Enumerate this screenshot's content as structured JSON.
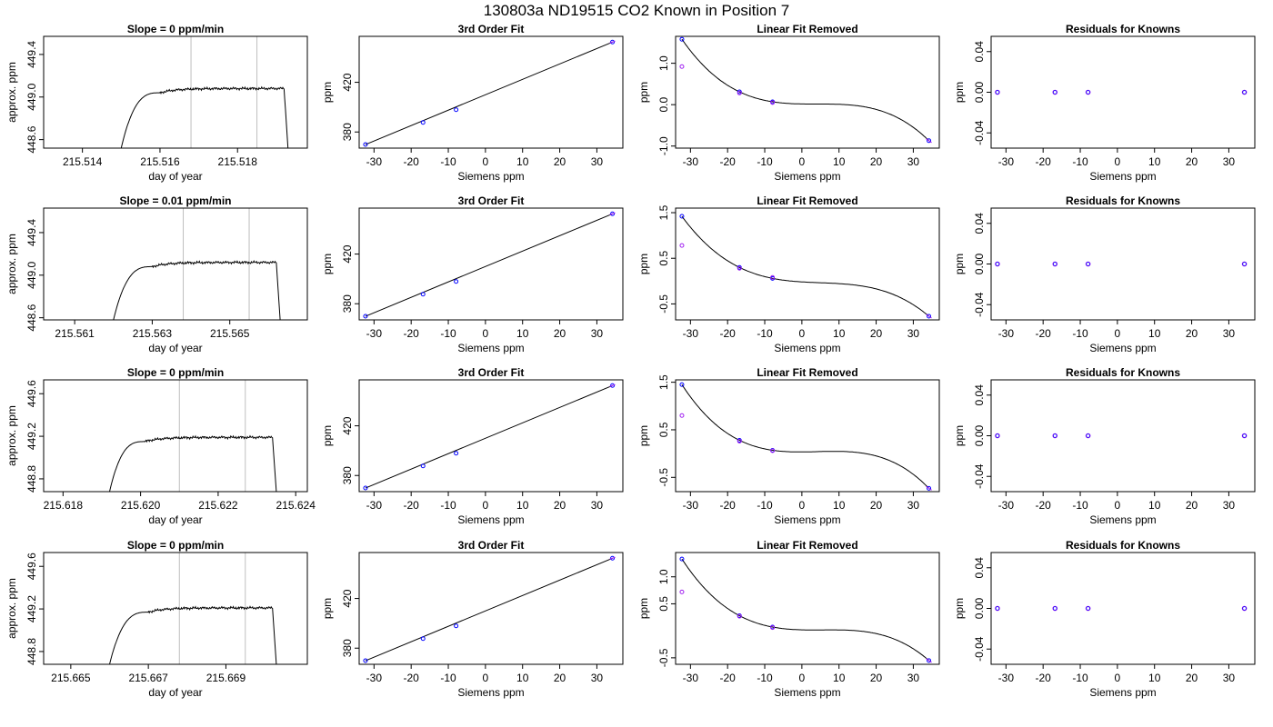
{
  "figure": {
    "title": "130803a     ND19515   CO2 Known in Position  7"
  },
  "colors": {
    "line": "#000000",
    "window": "#bebebe",
    "known_point": "#0000ff",
    "measured_point": "#a020f0",
    "fit_marker": "#ff0000"
  },
  "chart_data": [
    {
      "type": "line",
      "row": 0,
      "col": 0,
      "title": "Slope =  0  ppm/min",
      "xlabel": "day of year",
      "ylabel": "approx. ppm",
      "xlim": [
        215.513,
        215.5198
      ],
      "ylim": [
        448.52,
        449.57
      ],
      "xticks": [
        "215.514",
        "215.516",
        "215.518"
      ],
      "yticks": [
        "448.6",
        "449.0",
        "449.4"
      ],
      "window_lines": [
        215.5168,
        215.5185
      ],
      "trace": {
        "rise_start": [
          215.515,
          448.52
        ],
        "plateau_start": 215.516,
        "plateau_end": 215.5192,
        "plateau_level": 449.08,
        "end": [
          215.5193,
          448.52
        ]
      }
    },
    {
      "type": "scatter",
      "row": 0,
      "col": 1,
      "title": "3rd Order Fit",
      "xlabel": "Siemens ppm",
      "ylabel": "ppm",
      "xlim": [
        -34,
        37
      ],
      "ylim": [
        367,
        457
      ],
      "xticks": [
        "-30",
        "-20",
        "-10",
        "0",
        "10",
        "20",
        "30"
      ],
      "yticks": [
        "380",
        "420"
      ],
      "points": [
        [
          -32.3,
          369.9
        ],
        [
          -16.8,
          387.7
        ],
        [
          -7.9,
          397.9
        ],
        [
          34.2,
          452.4
        ]
      ]
    },
    {
      "type": "scatter",
      "row": 0,
      "col": 2,
      "title": "Linear Fit Removed",
      "xlabel": "Siemens ppm",
      "ylabel": "ppm",
      "xlim": [
        -34,
        37
      ],
      "ylim": [
        -1.05,
        1.65
      ],
      "xticks": [
        "-30",
        "-20",
        "-10",
        "0",
        "10",
        "20",
        "30"
      ],
      "yticks": [
        "-1.0",
        "0.0",
        "1.0"
      ],
      "known_points": [
        [
          -32.3,
          1.58
        ],
        [
          -16.8,
          0.31
        ],
        [
          -7.9,
          0.07
        ],
        [
          34.2,
          -0.87
        ]
      ],
      "measured_points": [
        [
          -32.3,
          0.92
        ],
        [
          -16.8,
          0.28
        ],
        [
          -7.9,
          0.05
        ]
      ],
      "cubic_through": [
        [
          -32.3,
          1.58
        ],
        [
          -16.8,
          0.31
        ],
        [
          -7.9,
          0.07
        ],
        [
          34.2,
          -0.87
        ]
      ]
    },
    {
      "type": "scatter",
      "row": 0,
      "col": 3,
      "title": "Residuals for Knowns",
      "xlabel": "Siemens ppm",
      "ylabel": "ppm",
      "xlim": [
        -34,
        37
      ],
      "ylim": [
        -0.055,
        0.055
      ],
      "xticks": [
        "-30",
        "-20",
        "-10",
        "0",
        "10",
        "20",
        "30"
      ],
      "yticks": [
        "-0.04",
        "0.00",
        "0.04"
      ],
      "points": [
        [
          -32.3,
          0
        ],
        [
          -16.8,
          0
        ],
        [
          -7.9,
          0
        ],
        [
          34.2,
          0
        ]
      ]
    },
    {
      "type": "line",
      "row": 1,
      "col": 0,
      "title": "Slope =  0.01  ppm/min",
      "xlabel": "day of year",
      "ylabel": "approx. ppm",
      "xlim": [
        215.5602,
        215.567
      ],
      "ylim": [
        448.58,
        449.63
      ],
      "xticks": [
        "215.561",
        "215.563",
        "215.565"
      ],
      "yticks": [
        "448.6",
        "449.0",
        "449.4"
      ],
      "window_lines": [
        215.5638,
        215.5655
      ],
      "trace": {
        "rise_start": [
          215.562,
          448.58
        ],
        "plateau_start": 215.563,
        "plateau_end": 215.5662,
        "plateau_level": 449.12,
        "end": [
          215.5663,
          448.58
        ]
      }
    },
    {
      "type": "scatter",
      "row": 1,
      "col": 1,
      "title": "3rd Order Fit",
      "xlabel": "Siemens ppm",
      "ylabel": "ppm",
      "xlim": [
        -34,
        37
      ],
      "ylim": [
        367,
        457
      ],
      "xticks": [
        "-30",
        "-20",
        "-10",
        "0",
        "10",
        "20",
        "30"
      ],
      "yticks": [
        "380",
        "420"
      ],
      "points": [
        [
          -32.3,
          369.9
        ],
        [
          -16.8,
          387.7
        ],
        [
          -7.9,
          397.9
        ],
        [
          34.2,
          452.4
        ]
      ]
    },
    {
      "type": "scatter",
      "row": 1,
      "col": 2,
      "title": "Linear Fit Removed",
      "xlabel": "Siemens ppm",
      "ylabel": "ppm",
      "xlim": [
        -34,
        37
      ],
      "ylim": [
        -0.85,
        1.6
      ],
      "xticks": [
        "-30",
        "-20",
        "-10",
        "0",
        "10",
        "20",
        "30"
      ],
      "yticks": [
        "-0.5",
        "0.5",
        "1.5"
      ],
      "known_points": [
        [
          -32.3,
          1.42
        ],
        [
          -16.8,
          0.3
        ],
        [
          -7.9,
          0.06
        ],
        [
          34.2,
          -0.77
        ]
      ],
      "measured_points": [
        [
          -32.3,
          0.78
        ],
        [
          -16.8,
          0.28
        ],
        [
          -7.9,
          0.08
        ]
      ],
      "cubic_through": [
        [
          -32.3,
          1.42
        ],
        [
          -16.8,
          0.3
        ],
        [
          -7.9,
          0.06
        ],
        [
          34.2,
          -0.77
        ]
      ]
    },
    {
      "type": "scatter",
      "row": 1,
      "col": 3,
      "title": "Residuals for Knowns",
      "xlabel": "Siemens ppm",
      "ylabel": "ppm",
      "xlim": [
        -34,
        37
      ],
      "ylim": [
        -0.055,
        0.055
      ],
      "xticks": [
        "-30",
        "-20",
        "-10",
        "0",
        "10",
        "20",
        "30"
      ],
      "yticks": [
        "-0.04",
        "0.00",
        "0.04"
      ],
      "points": [
        [
          -32.3,
          0
        ],
        [
          -16.8,
          0
        ],
        [
          -7.9,
          0
        ],
        [
          34.2,
          0
        ]
      ]
    },
    {
      "type": "line",
      "row": 2,
      "col": 0,
      "title": "Slope =  0  ppm/min",
      "xlabel": "day of year",
      "ylabel": "approx. ppm",
      "xlim": [
        215.6175,
        215.6243
      ],
      "ylim": [
        448.68,
        449.73
      ],
      "xticks": [
        "215.618",
        "215.620",
        "215.622",
        "215.624"
      ],
      "yticks": [
        "448.8",
        "449.2",
        "449.6"
      ],
      "window_lines": [
        215.621,
        215.6227
      ],
      "trace": {
        "rise_start": [
          215.6192,
          448.68
        ],
        "plateau_start": 215.6201,
        "plateau_end": 215.6234,
        "plateau_level": 449.19,
        "end": [
          215.6235,
          448.68
        ]
      }
    },
    {
      "type": "scatter",
      "row": 2,
      "col": 1,
      "title": "3rd Order Fit",
      "xlabel": "Siemens ppm",
      "ylabel": "ppm",
      "xlim": [
        -34,
        37
      ],
      "ylim": [
        367,
        457
      ],
      "xticks": [
        "-30",
        "-20",
        "-10",
        "0",
        "10",
        "20",
        "30"
      ],
      "yticks": [
        "380",
        "420"
      ],
      "points": [
        [
          -32.3,
          369.9
        ],
        [
          -16.8,
          387.7
        ],
        [
          -7.9,
          397.9
        ],
        [
          34.2,
          452.4
        ]
      ]
    },
    {
      "type": "scatter",
      "row": 2,
      "col": 2,
      "title": "Linear Fit Removed",
      "xlabel": "Siemens ppm",
      "ylabel": "ppm",
      "xlim": [
        -34,
        37
      ],
      "ylim": [
        -0.8,
        1.55
      ],
      "xticks": [
        "-30",
        "-20",
        "-10",
        "0",
        "10",
        "20",
        "30"
      ],
      "yticks": [
        "-0.5",
        "0.5",
        "1.5"
      ],
      "known_points": [
        [
          -32.3,
          1.45
        ],
        [
          -16.8,
          0.28
        ],
        [
          -7.9,
          0.07
        ],
        [
          34.2,
          -0.73
        ]
      ],
      "measured_points": [
        [
          -32.3,
          0.8
        ],
        [
          -16.8,
          0.26
        ],
        [
          -7.9,
          0.06
        ]
      ],
      "cubic_through": [
        [
          -32.3,
          1.45
        ],
        [
          -16.8,
          0.28
        ],
        [
          -7.9,
          0.07
        ],
        [
          34.2,
          -0.73
        ]
      ]
    },
    {
      "type": "scatter",
      "row": 2,
      "col": 3,
      "title": "Residuals for Knowns",
      "xlabel": "Siemens ppm",
      "ylabel": "ppm",
      "xlim": [
        -34,
        37
      ],
      "ylim": [
        -0.055,
        0.055
      ],
      "xticks": [
        "-30",
        "-20",
        "-10",
        "0",
        "10",
        "20",
        "30"
      ],
      "yticks": [
        "-0.04",
        "0.00",
        "0.04"
      ],
      "points": [
        [
          -32.3,
          0
        ],
        [
          -16.8,
          0
        ],
        [
          -7.9,
          0
        ],
        [
          34.2,
          0
        ]
      ]
    },
    {
      "type": "line",
      "row": 3,
      "col": 0,
      "title": "Slope =  0  ppm/min",
      "xlabel": "day of year",
      "ylabel": "approx. ppm",
      "xlim": [
        215.6643,
        215.6711
      ],
      "ylim": [
        448.68,
        449.73
      ],
      "xticks": [
        "215.665",
        "215.667",
        "215.669"
      ],
      "yticks": [
        "448.8",
        "449.2",
        "449.6"
      ],
      "window_lines": [
        215.6678,
        215.6695
      ],
      "trace": {
        "rise_start": [
          215.666,
          448.68
        ],
        "plateau_start": 215.667,
        "plateau_end": 215.6702,
        "plateau_level": 449.21,
        "end": [
          215.6703,
          448.68
        ]
      }
    },
    {
      "type": "scatter",
      "row": 3,
      "col": 1,
      "title": "3rd Order Fit",
      "xlabel": "Siemens ppm",
      "ylabel": "ppm",
      "xlim": [
        -34,
        37
      ],
      "ylim": [
        367,
        457
      ],
      "xticks": [
        "-30",
        "-20",
        "-10",
        "0",
        "10",
        "20",
        "30"
      ],
      "yticks": [
        "380",
        "420"
      ],
      "points": [
        [
          -32.3,
          369.9
        ],
        [
          -16.8,
          387.7
        ],
        [
          -7.9,
          397.9
        ],
        [
          34.2,
          452.4
        ]
      ]
    },
    {
      "type": "scatter",
      "row": 3,
      "col": 2,
      "title": "Linear Fit Removed",
      "xlabel": "Siemens ppm",
      "ylabel": "ppm",
      "xlim": [
        -34,
        37
      ],
      "ylim": [
        -0.62,
        1.45
      ],
      "xticks": [
        "-30",
        "-20",
        "-10",
        "0",
        "10",
        "20",
        "30"
      ],
      "yticks": [
        "-0.5",
        "0.5",
        "1.0"
      ],
      "known_points": [
        [
          -32.3,
          1.33
        ],
        [
          -16.8,
          0.28
        ],
        [
          -7.9,
          0.07
        ],
        [
          34.2,
          -0.55
        ]
      ],
      "measured_points": [
        [
          -32.3,
          0.72
        ],
        [
          -16.8,
          0.27
        ],
        [
          -7.9,
          0.06
        ]
      ],
      "cubic_through": [
        [
          -32.3,
          1.33
        ],
        [
          -16.8,
          0.28
        ],
        [
          -7.9,
          0.07
        ],
        [
          34.2,
          -0.55
        ]
      ]
    },
    {
      "type": "scatter",
      "row": 3,
      "col": 3,
      "title": "Residuals for Knowns",
      "xlabel": "Siemens ppm",
      "ylabel": "ppm",
      "xlim": [
        -34,
        37
      ],
      "ylim": [
        -0.055,
        0.055
      ],
      "xticks": [
        "-30",
        "-20",
        "-10",
        "0",
        "10",
        "20",
        "30"
      ],
      "yticks": [
        "-0.04",
        "0.00",
        "0.04"
      ],
      "points": [
        [
          -32.3,
          0
        ],
        [
          -16.8,
          0
        ],
        [
          -7.9,
          0
        ],
        [
          34.2,
          0
        ]
      ]
    }
  ]
}
